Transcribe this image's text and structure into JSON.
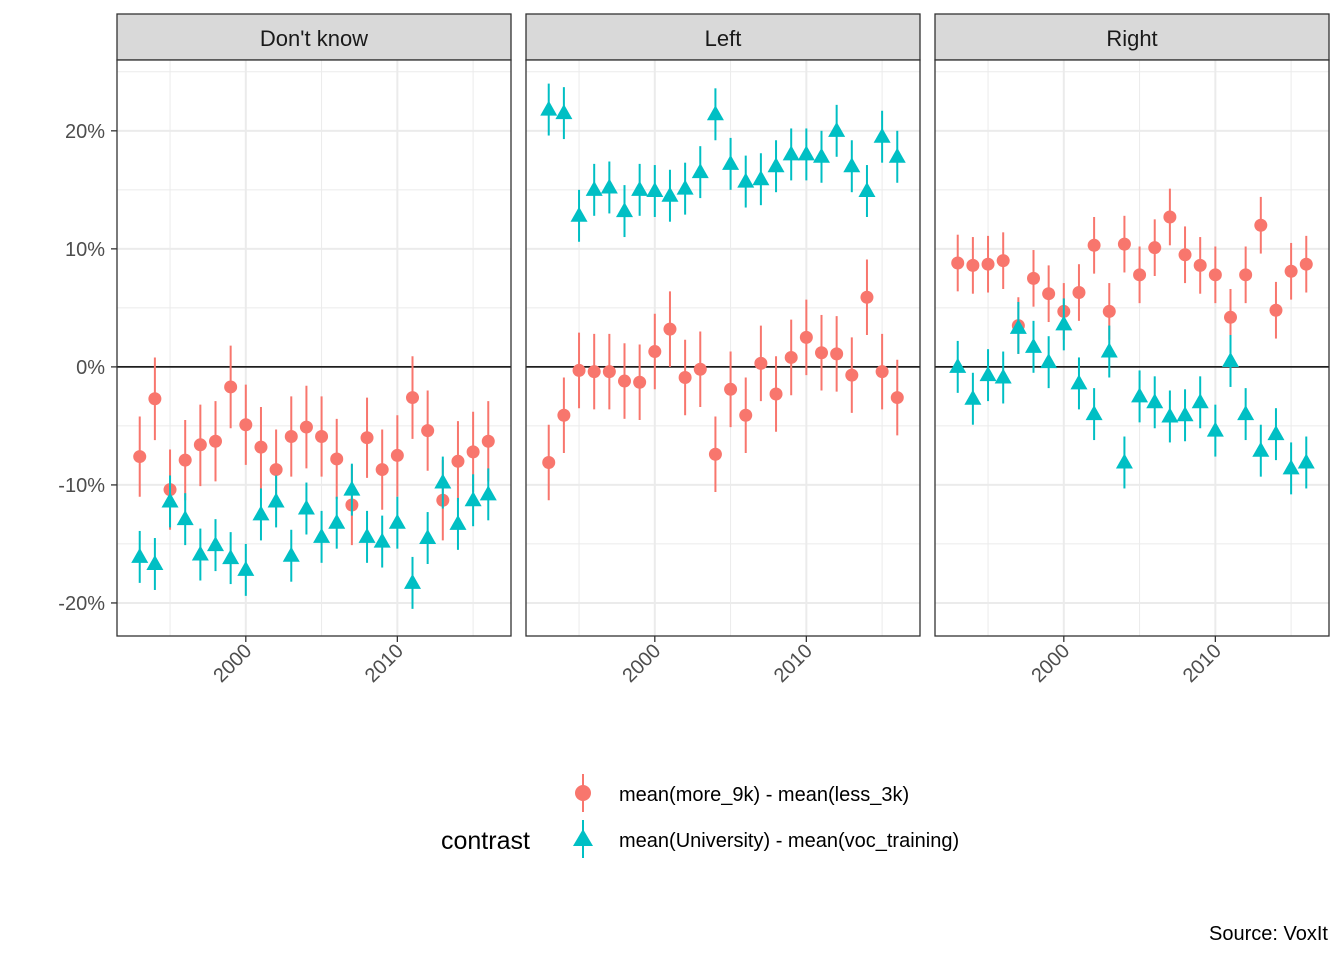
{
  "chart_data": {
    "type": "scatter",
    "subtype": "pointrange",
    "facets": [
      "Don't know",
      "Left",
      "Right"
    ],
    "x": [
      1993,
      1994,
      1995,
      1996,
      1997,
      1998,
      1999,
      2000,
      2001,
      2002,
      2003,
      2004,
      2005,
      2006,
      2007,
      2008,
      2009,
      2010,
      2011,
      2012,
      2013,
      2014,
      2015,
      2016
    ],
    "xticks": [
      2000,
      2010
    ],
    "xtick_labels": [
      "2000",
      "2010"
    ],
    "xlim": [
      1991.5,
      2017.5
    ],
    "yticks": [
      -0.2,
      -0.1,
      0,
      0.1,
      0.2
    ],
    "ytick_labels": [
      "-20%",
      "-10%",
      "0%",
      "10%",
      "20%"
    ],
    "ylim": [
      -0.228,
      0.26
    ],
    "hline": 0,
    "grid": true,
    "legend": {
      "title": "contrast",
      "position": "bottom",
      "entries": [
        {
          "label": "mean(more_9k) - mean(less_3k)",
          "color": "#F8766D",
          "shape": "circle"
        },
        {
          "label": "mean(University) - mean(voc_training)",
          "color": "#00BFC4",
          "shape": "triangle"
        }
      ]
    },
    "caption": "Source: VoxIt",
    "series": [
      {
        "name": "mean(more_9k) - mean(less_3k)",
        "color": "#F8766D",
        "shape": "circle",
        "panels": {
          "Don't know": {
            "y": [
              -0.076,
              -0.027,
              -0.104,
              -0.079,
              -0.066,
              -0.063,
              -0.017,
              -0.049,
              -0.068,
              -0.087,
              -0.059,
              -0.051,
              -0.059,
              -0.078,
              -0.117,
              -0.06,
              -0.087,
              -0.075,
              -0.026,
              -0.054,
              -0.113,
              -0.08,
              -0.072,
              -0.063
            ],
            "lo": [
              -0.11,
              -0.062,
              -0.138,
              -0.113,
              -0.101,
              -0.097,
              -0.052,
              -0.083,
              -0.103,
              -0.121,
              -0.093,
              -0.086,
              -0.093,
              -0.112,
              -0.151,
              -0.094,
              -0.121,
              -0.11,
              -0.061,
              -0.088,
              -0.147,
              -0.114,
              -0.106,
              -0.097
            ],
            "hi": [
              -0.042,
              0.008,
              -0.07,
              -0.045,
              -0.032,
              -0.029,
              0.018,
              -0.015,
              -0.034,
              -0.053,
              -0.025,
              -0.016,
              -0.025,
              -0.044,
              -0.083,
              -0.026,
              -0.053,
              -0.041,
              0.009,
              -0.02,
              -0.079,
              -0.046,
              -0.038,
              -0.029
            ]
          },
          "Left": {
            "y": [
              -0.081,
              -0.041,
              -0.003,
              -0.004,
              -0.004,
              -0.012,
              -0.013,
              0.013,
              0.032,
              -0.009,
              -0.002,
              -0.074,
              -0.019,
              -0.041,
              0.003,
              -0.023,
              0.008,
              0.025,
              0.012,
              0.011,
              -0.007,
              0.059,
              -0.004,
              -0.026
            ],
            "lo": [
              -0.113,
              -0.073,
              -0.035,
              -0.036,
              -0.036,
              -0.044,
              -0.045,
              -0.019,
              0.0,
              -0.041,
              -0.034,
              -0.106,
              -0.051,
              -0.073,
              -0.029,
              -0.055,
              -0.024,
              -0.007,
              -0.02,
              -0.021,
              -0.039,
              0.027,
              -0.036,
              -0.058
            ],
            "hi": [
              -0.049,
              -0.009,
              0.029,
              0.028,
              0.028,
              0.02,
              0.019,
              0.045,
              0.064,
              0.023,
              0.03,
              -0.042,
              0.013,
              -0.009,
              0.035,
              0.009,
              0.04,
              0.057,
              0.044,
              0.043,
              0.025,
              0.091,
              0.028,
              0.006
            ]
          },
          "Right": {
            "y": [
              0.088,
              0.086,
              0.087,
              0.09,
              0.035,
              0.075,
              0.062,
              0.047,
              0.063,
              0.103,
              0.047,
              0.104,
              0.078,
              0.101,
              0.127,
              0.095,
              0.086,
              0.078,
              0.042,
              0.078,
              0.12,
              0.048,
              0.081,
              0.087
            ],
            "lo": [
              0.064,
              0.062,
              0.063,
              0.066,
              0.011,
              0.051,
              0.038,
              0.023,
              0.039,
              0.079,
              0.023,
              0.08,
              0.054,
              0.077,
              0.103,
              0.071,
              0.062,
              0.054,
              0.018,
              0.054,
              0.096,
              0.024,
              0.057,
              0.063
            ],
            "hi": [
              0.112,
              0.11,
              0.111,
              0.114,
              0.059,
              0.099,
              0.086,
              0.071,
              0.087,
              0.127,
              0.071,
              0.128,
              0.102,
              0.125,
              0.151,
              0.119,
              0.11,
              0.102,
              0.066,
              0.102,
              0.144,
              0.072,
              0.105,
              0.111
            ]
          }
        }
      },
      {
        "name": "mean(University) - mean(voc_training)",
        "color": "#00BFC4",
        "shape": "triangle",
        "panels": {
          "Don't know": {
            "y": [
              -0.161,
              -0.167,
              -0.114,
              -0.129,
              -0.159,
              -0.151,
              -0.162,
              -0.172,
              -0.125,
              -0.114,
              -0.16,
              -0.12,
              -0.144,
              -0.132,
              -0.104,
              -0.144,
              -0.148,
              -0.132,
              -0.183,
              -0.145,
              -0.098,
              -0.133,
              -0.113,
              -0.108
            ],
            "lo": [
              -0.183,
              -0.189,
              -0.136,
              -0.151,
              -0.181,
              -0.173,
              -0.184,
              -0.194,
              -0.147,
              -0.136,
              -0.182,
              -0.142,
              -0.166,
              -0.154,
              -0.126,
              -0.166,
              -0.17,
              -0.154,
              -0.205,
              -0.167,
              -0.12,
              -0.155,
              -0.135,
              -0.13
            ],
            "hi": [
              -0.139,
              -0.145,
              -0.092,
              -0.107,
              -0.137,
              -0.129,
              -0.14,
              -0.15,
              -0.103,
              -0.092,
              -0.138,
              -0.098,
              -0.122,
              -0.11,
              -0.082,
              -0.122,
              -0.126,
              -0.11,
              -0.161,
              -0.123,
              -0.076,
              -0.111,
              -0.091,
              -0.086
            ]
          },
          "Left": {
            "y": [
              0.218,
              0.215,
              0.128,
              0.15,
              0.152,
              0.132,
              0.15,
              0.149,
              0.145,
              0.151,
              0.165,
              0.214,
              0.172,
              0.157,
              0.159,
              0.17,
              0.18,
              0.18,
              0.178,
              0.2,
              0.17,
              0.149,
              0.195,
              0.178
            ],
            "lo": [
              0.196,
              0.193,
              0.106,
              0.128,
              0.13,
              0.11,
              0.128,
              0.127,
              0.123,
              0.129,
              0.143,
              0.192,
              0.15,
              0.135,
              0.137,
              0.148,
              0.158,
              0.158,
              0.156,
              0.178,
              0.148,
              0.127,
              0.173,
              0.156
            ],
            "hi": [
              0.24,
              0.237,
              0.15,
              0.172,
              0.174,
              0.154,
              0.172,
              0.171,
              0.167,
              0.173,
              0.187,
              0.236,
              0.194,
              0.179,
              0.181,
              0.192,
              0.202,
              0.202,
              0.2,
              0.222,
              0.192,
              0.171,
              0.217,
              0.2
            ]
          },
          "Right": {
            "y": [
              0.0,
              -0.027,
              -0.007,
              -0.009,
              0.033,
              0.017,
              0.004,
              0.036,
              -0.014,
              -0.04,
              0.013,
              -0.081,
              -0.025,
              -0.03,
              -0.042,
              -0.041,
              -0.03,
              -0.054,
              0.005,
              -0.04,
              -0.071,
              -0.057,
              -0.086,
              -0.081
            ],
            "lo": [
              -0.022,
              -0.049,
              -0.029,
              -0.031,
              0.011,
              -0.005,
              -0.018,
              0.014,
              -0.036,
              -0.062,
              -0.009,
              -0.103,
              -0.047,
              -0.052,
              -0.064,
              -0.063,
              -0.052,
              -0.076,
              -0.017,
              -0.062,
              -0.093,
              -0.079,
              -0.108,
              -0.103
            ],
            "hi": [
              0.022,
              -0.005,
              0.015,
              0.013,
              0.055,
              0.039,
              0.026,
              0.058,
              0.008,
              -0.018,
              0.035,
              -0.059,
              -0.003,
              -0.008,
              -0.02,
              -0.019,
              -0.008,
              -0.032,
              0.027,
              -0.018,
              -0.049,
              -0.035,
              -0.064,
              -0.059
            ]
          }
        }
      }
    ]
  }
}
